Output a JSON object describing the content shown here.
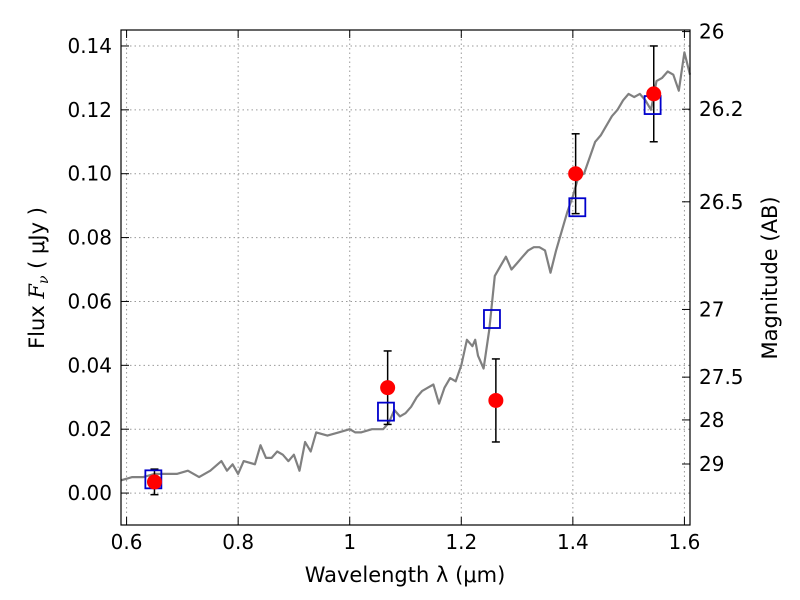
{
  "chart_data": {
    "type": "scatter",
    "title": "",
    "xlabel": "Wavelength  λ (μm)",
    "ylabel_parts": {
      "prefix": "Flux  ",
      "symbol": "F",
      "subscript": "ν",
      "unit": "  ( μJy )"
    },
    "ylabel_right": "Magnitude (AB)",
    "xlim": [
      0.59,
      1.61
    ],
    "ylim": [
      -0.01,
      0.145
    ],
    "grid": true,
    "grid_style": "dotted",
    "x_ticks": [
      0.6,
      0.8,
      1.0,
      1.2,
      1.4,
      1.6
    ],
    "x_tick_labels": [
      "0.6",
      "0.8",
      "1",
      "1.2",
      "1.4",
      "1.6"
    ],
    "y_ticks": [
      0.0,
      0.02,
      0.04,
      0.06,
      0.08,
      0.1,
      0.12,
      0.14
    ],
    "y_tick_labels": [
      "0.00",
      "0.02",
      "0.04",
      "0.06",
      "0.08",
      "0.10",
      "0.12",
      "0.14"
    ],
    "right_axis_ticks": [
      {
        "label": "26",
        "flux": 0.1445
      },
      {
        "label": "26.2",
        "flux": 0.1202
      },
      {
        "label": "26.5",
        "flux": 0.0912
      },
      {
        "label": "27",
        "flux": 0.0575
      },
      {
        "label": "27.5",
        "flux": 0.0363
      },
      {
        "label": "28",
        "flux": 0.0229
      },
      {
        "label": "29",
        "flux": 0.0091
      }
    ],
    "colors": {
      "model": "#808080",
      "observed": "#ff0000",
      "synthetic": "#0000cc",
      "errorbar": "#000000",
      "grid": "#9a9a9a"
    },
    "series": [
      {
        "kind": "line",
        "x": [
          0.59,
          0.61,
          0.63,
          0.65,
          0.67,
          0.69,
          0.71,
          0.73,
          0.75,
          0.77,
          0.78,
          0.79,
          0.8,
          0.81,
          0.83,
          0.84,
          0.85,
          0.86,
          0.87,
          0.88,
          0.89,
          0.9,
          0.91,
          0.92,
          0.93,
          0.94,
          0.96,
          0.98,
          1.0,
          1.01,
          1.02,
          1.04,
          1.06,
          1.07,
          1.08,
          1.09,
          1.1,
          1.11,
          1.12,
          1.13,
          1.14,
          1.15,
          1.16,
          1.17,
          1.18,
          1.19,
          1.2,
          1.21,
          1.22,
          1.225,
          1.23,
          1.24,
          1.25,
          1.26,
          1.27,
          1.28,
          1.29,
          1.3,
          1.31,
          1.32,
          1.33,
          1.34,
          1.35,
          1.36,
          1.37,
          1.38,
          1.39,
          1.4,
          1.41,
          1.42,
          1.43,
          1.44,
          1.45,
          1.46,
          1.47,
          1.48,
          1.49,
          1.5,
          1.51,
          1.52,
          1.53,
          1.54,
          1.55,
          1.56,
          1.57,
          1.58,
          1.59,
          1.6,
          1.61
        ],
        "y": [
          0.004,
          0.005,
          0.005,
          0.006,
          0.006,
          0.006,
          0.007,
          0.005,
          0.007,
          0.01,
          0.007,
          0.009,
          0.006,
          0.01,
          0.009,
          0.015,
          0.011,
          0.011,
          0.013,
          0.012,
          0.01,
          0.012,
          0.007,
          0.016,
          0.013,
          0.019,
          0.018,
          0.019,
          0.02,
          0.019,
          0.019,
          0.02,
          0.02,
          0.022,
          0.026,
          0.024,
          0.025,
          0.027,
          0.03,
          0.032,
          0.033,
          0.034,
          0.028,
          0.033,
          0.036,
          0.035,
          0.04,
          0.048,
          0.046,
          0.048,
          0.043,
          0.039,
          0.051,
          0.068,
          0.071,
          0.074,
          0.07,
          0.072,
          0.074,
          0.076,
          0.077,
          0.077,
          0.076,
          0.069,
          0.076,
          0.082,
          0.088,
          0.093,
          0.099,
          0.1,
          0.105,
          0.11,
          0.112,
          0.115,
          0.118,
          0.12,
          0.123,
          0.125,
          0.124,
          0.125,
          0.123,
          0.12,
          0.129,
          0.13,
          0.132,
          0.131,
          0.126,
          0.138,
          0.131
        ]
      },
      {
        "kind": "markers",
        "marker": "square",
        "x": [
          0.648,
          1.065,
          1.255,
          1.408,
          1.543
        ],
        "y": [
          0.0043,
          0.0255,
          0.0545,
          0.0895,
          0.1215
        ]
      },
      {
        "kind": "markers",
        "marker": "circle",
        "x": [
          0.65,
          1.068,
          1.262,
          1.405,
          1.545
        ],
        "y": [
          0.0035,
          0.033,
          0.029,
          0.1,
          0.125
        ],
        "yerr": [
          0.004,
          0.0115,
          0.013,
          0.0125,
          0.015
        ]
      }
    ]
  }
}
